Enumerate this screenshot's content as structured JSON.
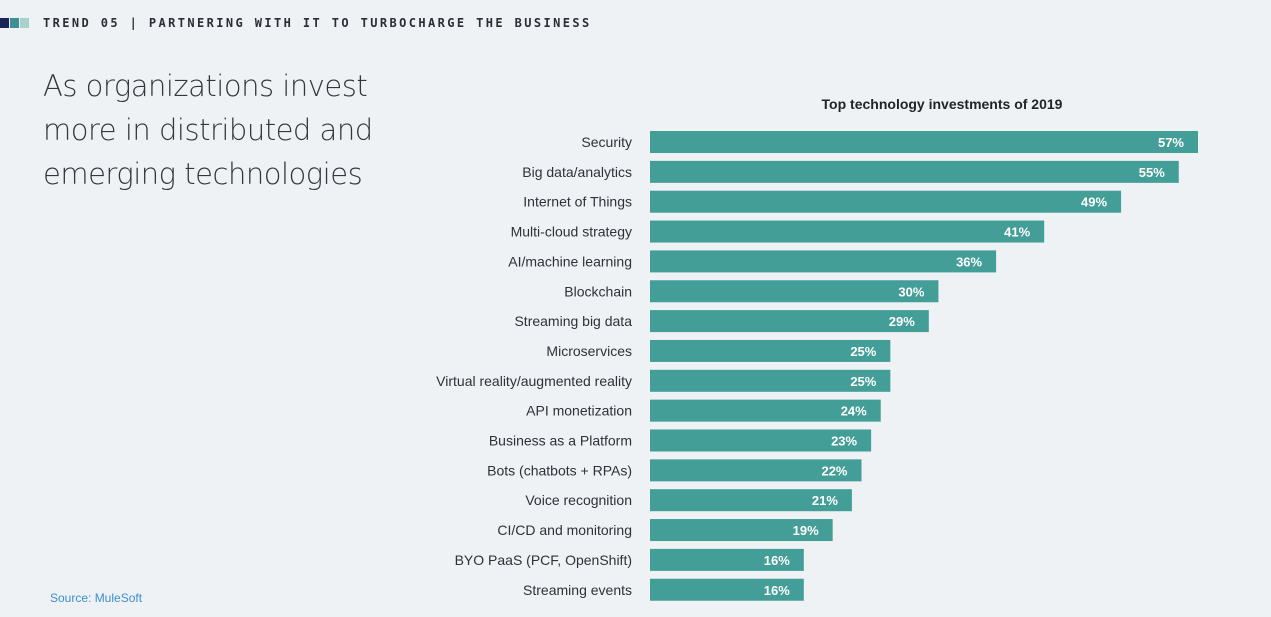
{
  "header": {
    "title": "TREND 05 | PARTNERING WITH IT TO TURBOCHARGE THE BUSINESS",
    "marker_colors": [
      "#1a2456",
      "#3f8f97",
      "#a7d3cf"
    ]
  },
  "headline": {
    "lines": [
      "As organizations invest",
      "more in distributed and",
      "emerging technologies"
    ]
  },
  "source": "Source: MuleSoft",
  "colors": {
    "bar": "#439e98",
    "background": "#eef2f5"
  },
  "chart_data": {
    "type": "bar",
    "orientation": "horizontal",
    "title": "Top technology investments of 2019",
    "categories": [
      "Security",
      "Big data/analytics",
      "Internet of Things",
      "Multi-cloud strategy",
      "AI/machine learning",
      "Blockchain",
      "Streaming big data",
      "Microservices",
      "Virtual reality/augmented reality",
      "API monetization",
      "Business as a Platform",
      "Bots (chatbots + RPAs)",
      "Voice recognition",
      "CI/CD and monitoring",
      "BYO PaaS (PCF, OpenShift)",
      "Streaming events"
    ],
    "values": [
      57,
      55,
      49,
      41,
      36,
      30,
      29,
      25,
      25,
      24,
      23,
      22,
      21,
      19,
      16,
      16
    ],
    "value_labels": [
      "57%",
      "55%",
      "49%",
      "41%",
      "36%",
      "30%",
      "29%",
      "25%",
      "25%",
      "24%",
      "23%",
      "22%",
      "21%",
      "19%",
      "16%",
      "16%"
    ],
    "unit": "%",
    "xlabel": "",
    "ylabel": "",
    "xlim": [
      0,
      57
    ],
    "grid": false,
    "legend": "none"
  }
}
